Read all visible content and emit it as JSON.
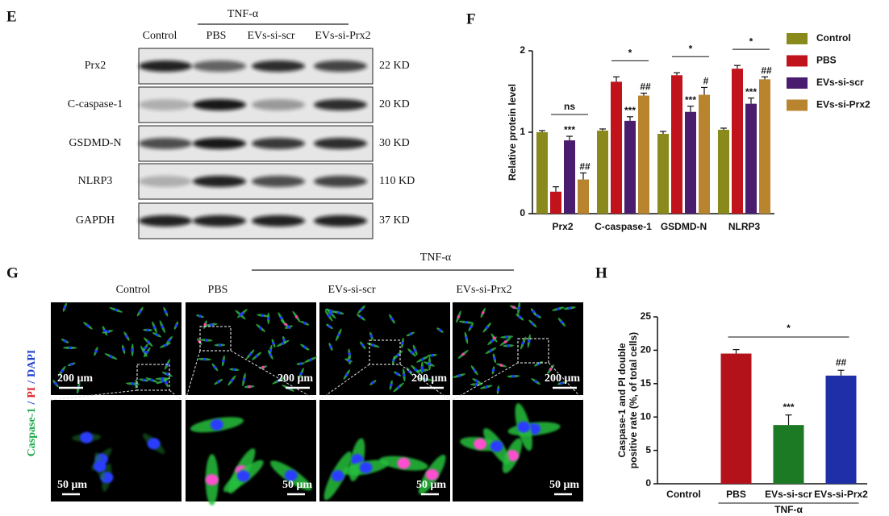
{
  "panel_e": {
    "label": "E",
    "group_label": "TNF-α",
    "columns": [
      "Control",
      "PBS",
      "EVs-si-scr",
      "EVs-si-Prx2"
    ],
    "rows": [
      {
        "protein": "Prx2",
        "size": "22 KD"
      },
      {
        "protein": "C-caspase-1",
        "size": "20 KD"
      },
      {
        "protein": "GSDMD-N",
        "size": "30 KD"
      },
      {
        "protein": "NLRP3",
        "size": "110 KD"
      },
      {
        "protein": "GAPDH",
        "size": "37 KD"
      }
    ]
  },
  "panel_g": {
    "label": "G",
    "group_label": "TNF-α",
    "columns": [
      "Control",
      "PBS",
      "EVs-si-scr",
      "EVs-si-Prx2"
    ],
    "stain": [
      "Caspase-1",
      "PI",
      "DAPI"
    ],
    "separator": "/",
    "scale_bars": [
      "200 μm",
      "50 μm"
    ]
  },
  "chart_data": [
    {
      "type": "bar",
      "panel_label": "F",
      "y_label": "Relative protein level",
      "categories": [
        "Prx2",
        "C-caspase-1",
        "GSDMD-N",
        "NLRP3"
      ],
      "series": [
        {
          "name": "Control",
          "color": "#8a8a1c",
          "values": [
            1.0,
            1.02,
            0.98,
            1.03
          ],
          "errors": [
            0.02,
            0.02,
            0.03,
            0.02
          ],
          "annotations": [
            null,
            null,
            null,
            null
          ]
        },
        {
          "name": "PBS",
          "color": "#c0131c",
          "values": [
            0.27,
            1.62,
            1.7,
            1.78
          ],
          "errors": [
            0.06,
            0.06,
            0.03,
            0.04
          ],
          "annotations": [
            null,
            null,
            null,
            null
          ]
        },
        {
          "name": "EVs-si-scr",
          "color": "#4a1c6e",
          "values": [
            0.9,
            1.14,
            1.25,
            1.35
          ],
          "errors": [
            0.05,
            0.05,
            0.07,
            0.07
          ],
          "annotations": [
            "***",
            "***",
            "***",
            "***"
          ]
        },
        {
          "name": "EVs-si-Prx2",
          "color": "#b8842e",
          "values": [
            0.42,
            1.45,
            1.46,
            1.65
          ],
          "errors": [
            0.08,
            0.03,
            0.09,
            0.03
          ],
          "annotations": [
            "##",
            "##",
            "#",
            "##"
          ]
        }
      ],
      "brackets": [
        "ns",
        "*",
        "*",
        "*"
      ],
      "ylim": [
        0,
        2
      ],
      "yticks": [
        0,
        1,
        2
      ],
      "legend": "right"
    },
    {
      "type": "bar",
      "panel_label": "H",
      "y_label": [
        "Caspase-1 and PI double",
        "positive rate (%, of total cells)"
      ],
      "categories": [
        "Control",
        "PBS",
        "EVs-si-scr",
        "EVs-si-Prx2"
      ],
      "values": [
        0,
        19.5,
        8.8,
        16.2
      ],
      "errors": [
        0,
        0.6,
        1.5,
        0.8
      ],
      "colors": [
        "#b0b0b0",
        "#b3121b",
        "#1d7a24",
        "#1f2fa8"
      ],
      "annotations": [
        null,
        null,
        "***",
        "##"
      ],
      "bracket_label": "*",
      "group_label": "TNF-α",
      "ylim": [
        0,
        25
      ],
      "yticks": [
        0,
        5,
        10,
        15,
        20,
        25
      ]
    }
  ]
}
